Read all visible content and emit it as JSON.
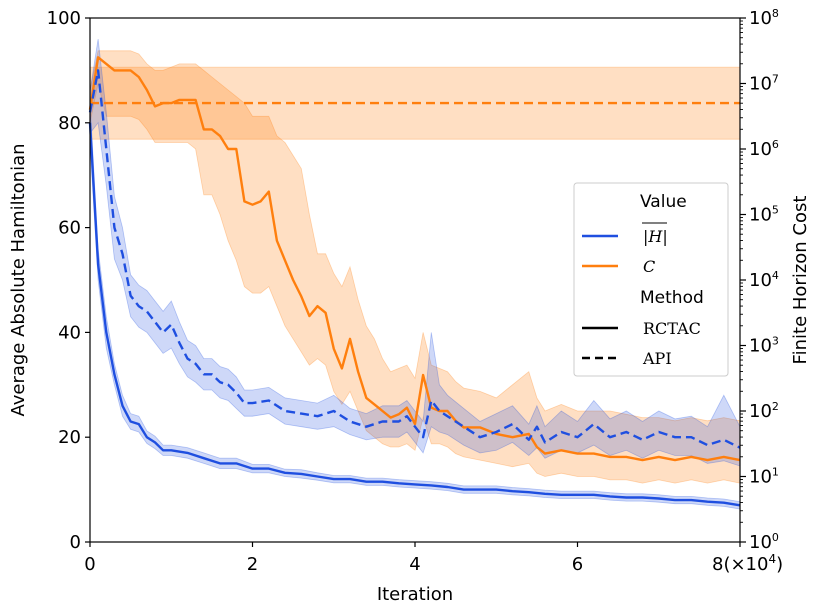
{
  "chart_data": {
    "type": "line",
    "x_unit_note": "x values in units of 10^4 iterations",
    "xlabel": "Iteration",
    "xlim": [
      0,
      8
    ],
    "xticks": [
      "0",
      "2",
      "4",
      "6"
    ],
    "xtick_last": "8",
    "xtick_multiplier": "(×10",
    "xtick_multiplier_exp": "4",
    "xtick_multiplier_close": ")",
    "ylabel_left": "Average Absolute Hamiltonian",
    "ylim_left": [
      0,
      100
    ],
    "yticks_left": [
      "0",
      "20",
      "40",
      "60",
      "80",
      "100"
    ],
    "ylabel_right": "Finite Horizon Cost",
    "ylim_right_log10": [
      0,
      8
    ],
    "yticks_right_base": "10",
    "yticks_right_exps": [
      "0",
      "1",
      "2",
      "3",
      "4",
      "5",
      "6",
      "7",
      "8"
    ],
    "colors": {
      "H": "#1f4fe0",
      "C": "#ff7f0e"
    },
    "legend": {
      "value_title": "Value",
      "h_label": "|H|",
      "c_label": "C",
      "method_title": "Method",
      "rctac_label": "RCTAC",
      "api_label": "API"
    },
    "series": [
      {
        "name": "|H| RCTAC",
        "axis": "left",
        "style": "solid",
        "color": "#1f4fe0",
        "x": [
          0,
          0.1,
          0.2,
          0.3,
          0.4,
          0.5,
          0.6,
          0.7,
          0.8,
          0.9,
          1.0,
          1.2,
          1.4,
          1.6,
          1.8,
          2.0,
          2.2,
          2.4,
          2.6,
          2.8,
          3.0,
          3.2,
          3.4,
          3.6,
          3.8,
          4.0,
          4.2,
          4.4,
          4.6,
          4.8,
          5.0,
          5.2,
          5.4,
          5.6,
          5.8,
          6.0,
          6.2,
          6.4,
          6.6,
          6.8,
          7.0,
          7.2,
          7.4,
          7.6,
          7.8,
          8.0
        ],
        "values": [
          80,
          53,
          40,
          32,
          26,
          23,
          22.5,
          20,
          19,
          17.5,
          17.5,
          17,
          16,
          15,
          15,
          14,
          14,
          13.2,
          13,
          12.5,
          12,
          12,
          11.5,
          11.5,
          11.2,
          11,
          10.8,
          10.5,
          10,
          10,
          10,
          9.7,
          9.5,
          9.2,
          9,
          9,
          9,
          8.7,
          8.5,
          8.5,
          8.3,
          8,
          8,
          7.7,
          7.5,
          7
        ],
        "lower": [
          76,
          50,
          37,
          30,
          24,
          21.5,
          21,
          18.8,
          17.8,
          16.5,
          16.5,
          16,
          15,
          14,
          14,
          13.2,
          13.2,
          12.5,
          12.2,
          11.8,
          11.3,
          11.3,
          10.8,
          10.8,
          10.5,
          10.3,
          10.1,
          9.8,
          9.3,
          9.3,
          9.3,
          9,
          8.8,
          8.5,
          8.3,
          8.3,
          8.3,
          8,
          7.8,
          7.8,
          7.6,
          7.3,
          7.3,
          7,
          6.8,
          6.3
        ],
        "upper": [
          84,
          56,
          43,
          34,
          28,
          24.5,
          24,
          21.2,
          20.2,
          18.5,
          18.5,
          18,
          17,
          16,
          16,
          14.8,
          14.8,
          13.9,
          13.8,
          13.2,
          12.7,
          12.7,
          12.2,
          12.2,
          11.9,
          11.7,
          11.5,
          11.2,
          10.7,
          10.7,
          10.7,
          10.4,
          10.2,
          9.9,
          9.7,
          9.7,
          9.7,
          9.4,
          9.2,
          9.2,
          9,
          8.7,
          8.7,
          8.4,
          8.2,
          7.7
        ]
      },
      {
        "name": "|H| API",
        "axis": "left",
        "style": "dashed",
        "color": "#1f4fe0",
        "x": [
          0,
          0.1,
          0.2,
          0.3,
          0.4,
          0.5,
          0.6,
          0.7,
          0.8,
          0.9,
          1.0,
          1.1,
          1.2,
          1.3,
          1.4,
          1.5,
          1.6,
          1.7,
          1.8,
          1.9,
          2.0,
          2.2,
          2.4,
          2.6,
          2.8,
          3.0,
          3.2,
          3.4,
          3.6,
          3.8,
          3.9,
          4.0,
          4.1,
          4.2,
          4.3,
          4.4,
          4.6,
          4.8,
          5.0,
          5.2,
          5.4,
          5.5,
          5.6,
          5.8,
          6.0,
          6.2,
          6.4,
          6.6,
          6.8,
          7.0,
          7.2,
          7.4,
          7.6,
          7.8,
          8.0
        ],
        "values": [
          82,
          90,
          75,
          60,
          55,
          47,
          45,
          44,
          42,
          40,
          41.5,
          38,
          35,
          34,
          32,
          32,
          30.5,
          30,
          28.5,
          26.5,
          26.5,
          27,
          25,
          24.5,
          24,
          25,
          23,
          22,
          23,
          23,
          24,
          22,
          20,
          27,
          25,
          24,
          22,
          20,
          21,
          22.5,
          19.5,
          22,
          19,
          21,
          20,
          22.5,
          20,
          21,
          19.5,
          21,
          20,
          20,
          18.5,
          19.5,
          18
        ],
        "lower": [
          78,
          80,
          68,
          54,
          50,
          43,
          41,
          40,
          38,
          36,
          37,
          34,
          31.5,
          30.5,
          29,
          29,
          27.5,
          27,
          25.5,
          24,
          24,
          24.5,
          22.5,
          22,
          21.5,
          22,
          20.5,
          19.5,
          20,
          20,
          21,
          19,
          17,
          22,
          21,
          20.5,
          18.5,
          17,
          17.5,
          19,
          16.5,
          18,
          16,
          17.5,
          17,
          18.5,
          16.5,
          17.5,
          16,
          17.5,
          16.5,
          16.5,
          15,
          15.5,
          14.5
        ],
        "upper": [
          86,
          96,
          82,
          66,
          60,
          51,
          49,
          48,
          46,
          44,
          46,
          42,
          38.5,
          37.5,
          35,
          35,
          33.5,
          33,
          31.5,
          29,
          29,
          29.5,
          27.5,
          27,
          26.5,
          28,
          25.5,
          24.5,
          26,
          26,
          27,
          25,
          23,
          40,
          30,
          28,
          25.5,
          23,
          24.5,
          26,
          22.5,
          26,
          22,
          25,
          23,
          27,
          23.5,
          25,
          23,
          25,
          23.5,
          24,
          22,
          28,
          22
        ]
      },
      {
        "name": "C RCTAC",
        "axis": "right_log",
        "style": "solid",
        "color": "#ff7f0e",
        "x": [
          0,
          0.1,
          0.2,
          0.3,
          0.4,
          0.5,
          0.6,
          0.7,
          0.8,
          0.9,
          1.0,
          1.1,
          1.2,
          1.3,
          1.4,
          1.5,
          1.6,
          1.7,
          1.8,
          1.9,
          2.0,
          2.1,
          2.2,
          2.3,
          2.4,
          2.5,
          2.6,
          2.7,
          2.8,
          2.9,
          3.0,
          3.1,
          3.2,
          3.3,
          3.4,
          3.5,
          3.6,
          3.7,
          3.8,
          3.9,
          4.0,
          4.1,
          4.2,
          4.3,
          4.4,
          4.5,
          4.6,
          4.8,
          5.0,
          5.2,
          5.4,
          5.5,
          5.6,
          5.8,
          6.0,
          6.2,
          6.4,
          6.6,
          6.8,
          7.0,
          7.2,
          7.4,
          7.6,
          7.8,
          8.0
        ],
        "values": [
          6.6,
          7.4,
          7.3,
          7.2,
          7.2,
          7.2,
          7.1,
          6.9,
          6.65,
          6.7,
          6.7,
          6.75,
          6.75,
          6.75,
          6.3,
          6.3,
          6.2,
          6.0,
          6.0,
          5.2,
          5.15,
          5.2,
          5.35,
          4.6,
          4.3,
          4.0,
          3.75,
          3.45,
          3.6,
          3.5,
          2.95,
          2.65,
          3.1,
          2.6,
          2.2,
          2.1,
          2.0,
          1.9,
          1.95,
          2.05,
          1.8,
          2.55,
          2.05,
          2.0,
          2.0,
          1.85,
          1.75,
          1.75,
          1.65,
          1.6,
          1.65,
          1.45,
          1.35,
          1.4,
          1.35,
          1.35,
          1.3,
          1.3,
          1.25,
          1.3,
          1.25,
          1.3,
          1.25,
          1.3,
          1.25
        ],
        "lower": [
          6.4,
          7.0,
          6.5,
          6.5,
          6.5,
          6.5,
          6.45,
          6.3,
          6.1,
          6.1,
          6.1,
          6.1,
          6.1,
          6.0,
          5.3,
          5.3,
          5.0,
          4.6,
          4.3,
          3.9,
          3.8,
          3.8,
          3.9,
          3.6,
          3.3,
          3.1,
          2.9,
          2.7,
          2.8,
          2.7,
          2.3,
          2.1,
          2.3,
          2.0,
          1.7,
          1.6,
          1.5,
          1.45,
          1.45,
          1.5,
          1.4,
          1.9,
          1.5,
          1.5,
          1.45,
          1.35,
          1.3,
          1.25,
          1.2,
          1.15,
          1.2,
          1.05,
          1.0,
          1.05,
          1.0,
          1.0,
          0.95,
          0.95,
          0.9,
          0.95,
          0.9,
          0.95,
          0.9,
          0.95,
          0.9
        ],
        "upper": [
          6.9,
          7.5,
          7.5,
          7.5,
          7.5,
          7.5,
          7.45,
          7.3,
          7.2,
          7.2,
          7.25,
          7.3,
          7.3,
          7.3,
          7.2,
          7.1,
          7.0,
          6.9,
          6.8,
          6.7,
          6.5,
          6.5,
          6.5,
          6.2,
          6.1,
          5.9,
          5.7,
          5.0,
          4.4,
          4.4,
          4.1,
          3.9,
          4.2,
          3.7,
          3.3,
          3.1,
          2.8,
          2.6,
          2.65,
          2.7,
          2.5,
          3.2,
          2.7,
          2.65,
          2.6,
          2.45,
          2.35,
          2.3,
          2.2,
          2.4,
          2.6,
          2.2,
          2.0,
          2.1,
          2.0,
          2.0,
          2.0,
          1.95,
          1.9,
          1.9,
          1.85,
          1.9,
          1.85,
          1.9,
          1.85
        ]
      },
      {
        "name": "C API",
        "axis": "right_log",
        "style": "dashed",
        "color": "#ff7f0e",
        "x": [
          0,
          8
        ],
        "values": [
          6.7,
          6.7
        ],
        "lower": [
          6.15,
          6.15
        ],
        "upper": [
          7.25,
          7.25
        ]
      }
    ]
  }
}
